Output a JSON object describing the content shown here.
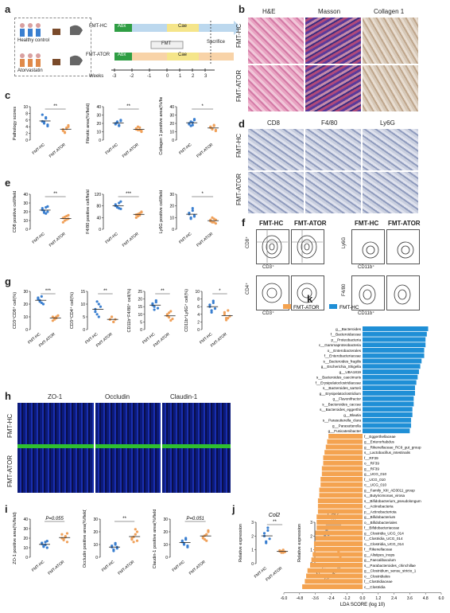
{
  "panel_labels": {
    "a": "a",
    "b": "b",
    "c": "c",
    "d": "d",
    "e": "e",
    "f": "f",
    "g": "g",
    "h": "h",
    "i": "i",
    "j": "j",
    "k": "k"
  },
  "panel_a": {
    "group_hc": "Healthy control",
    "group_ator": "Atorvastatin",
    "row_hc": "FMT-HC",
    "row_ator": "FMT-ATOR",
    "abx": "Abx",
    "cae": "Cae",
    "fmt": "FMT",
    "sacrifice": "Sacrifice",
    "weeks_label": "Weeks",
    "weeks": [
      "-3",
      "-2",
      "-1",
      "0",
      "1",
      "2",
      "3"
    ]
  },
  "panel_b": {
    "cols": [
      "H&E",
      "Masson",
      "Collagen 1"
    ],
    "rows": [
      "FMT-HC",
      "FMT-ATOR"
    ]
  },
  "panel_d": {
    "cols": [
      "CD8",
      "F4/80",
      "Ly6G"
    ],
    "rows": [
      "FMT-HC",
      "FMT-ATOR"
    ]
  },
  "panel_f": {
    "headers": [
      "FMT-HC",
      "FMT-ATOR",
      "FMT-HC",
      "FMT-ATOR"
    ],
    "axes": {
      "cd8": "CD8⁺",
      "cd3": "CD3⁺",
      "cd4": "CD4⁺",
      "ly6g": "Ly6G",
      "cd11b": "CD11b⁺",
      "f480": "F4/80"
    }
  },
  "panel_h": {
    "cols": [
      "ZO-1",
      "Occludin",
      "Claudin-1"
    ],
    "rows": [
      "FMT-HC",
      "FMT-ATOR"
    ]
  },
  "colors": {
    "hc": "#3a7fd0",
    "ator": "#f0a15a",
    "lda_ator": "#f4a350",
    "lda_hc": "#1f8fd6"
  },
  "chart_data": [
    {
      "id": "c1",
      "type": "scatter",
      "ylabel": "Pathology scores",
      "categories": [
        "FMT-HC",
        "FMT-ATOR"
      ],
      "ylim": [
        0,
        10
      ],
      "yticks": [
        0,
        2,
        4,
        6,
        8,
        10
      ],
      "sig": "**",
      "series": [
        {
          "values": [
            5.6,
            5.0,
            6.5,
            4.2,
            7.6,
            5.5,
            6.8,
            4.6
          ]
        },
        {
          "values": [
            3.2,
            2.4,
            3.7,
            4.0,
            2.8,
            2.2,
            3.4,
            4.4
          ]
        }
      ]
    },
    {
      "id": "c2",
      "type": "scatter",
      "ylabel": "Fibrotic area(%/field)",
      "categories": [
        "FMT-HC",
        "FMT-ATOR"
      ],
      "ylim": [
        0,
        40
      ],
      "yticks": [
        0,
        10,
        20,
        30,
        40
      ],
      "sig": "**",
      "series": [
        {
          "values": [
            20,
            22,
            18,
            24,
            19,
            21,
            17,
            23
          ]
        },
        {
          "values": [
            14,
            12,
            15,
            11,
            13,
            16,
            12,
            10
          ]
        }
      ]
    },
    {
      "id": "c3",
      "type": "scatter",
      "ylabel": "Collagen 1 positive area(%/field)",
      "categories": [
        "FMT-HC",
        "FMT-ATOR"
      ],
      "ylim": [
        0,
        40
      ],
      "yticks": [
        0,
        10,
        20,
        30,
        40
      ],
      "sig": "*",
      "series": [
        {
          "values": [
            19,
            22,
            18,
            24,
            20,
            17,
            21,
            25
          ]
        },
        {
          "values": [
            15,
            13,
            17,
            12,
            16,
            14,
            18,
            11
          ]
        }
      ]
    },
    {
      "id": "e1",
      "type": "scatter",
      "ylabel": "CD8 positive cell/field",
      "categories": [
        "FMT-HC",
        "FMT-ATOR"
      ],
      "ylim": [
        0,
        40
      ],
      "yticks": [
        0,
        10,
        20,
        30,
        40
      ],
      "sig": "**",
      "series": [
        {
          "values": [
            22,
            19,
            25,
            20,
            24,
            21,
            18,
            26
          ]
        },
        {
          "values": [
            13,
            10,
            15,
            12,
            8,
            14,
            11,
            16
          ]
        }
      ]
    },
    {
      "id": "e2",
      "type": "scatter",
      "ylabel": "F4/80 positive cell/field",
      "categories": [
        "FMT-HC",
        "FMT-ATOR"
      ],
      "ylim": [
        0,
        120
      ],
      "yticks": [
        0,
        40,
        80,
        120
      ],
      "sig": "***",
      "series": [
        {
          "values": [
            80,
            75,
            90,
            70,
            85,
            78,
            72,
            95
          ]
        },
        {
          "values": [
            50,
            45,
            55,
            60,
            40,
            52,
            48,
            58
          ]
        }
      ]
    },
    {
      "id": "e3",
      "type": "scatter",
      "ylabel": "Ly6G positive cell/field",
      "categories": [
        "FMT-HC",
        "FMT-ATOR"
      ],
      "ylim": [
        0,
        30
      ],
      "yticks": [
        0,
        10,
        20,
        30
      ],
      "sig": "*",
      "series": [
        {
          "values": [
            13,
            10,
            16,
            12,
            14,
            9,
            18,
            11
          ]
        },
        {
          "values": [
            8,
            6,
            9,
            5,
            7,
            10,
            6,
            8
          ]
        }
      ]
    },
    {
      "id": "g1",
      "type": "scatter",
      "ylabel": "CD3⁺CD8⁺ cell(%)",
      "categories": [
        "FMT-HC",
        "FMT-ATOR"
      ],
      "ylim": [
        0,
        30
      ],
      "yticks": [
        0,
        10,
        20,
        30
      ],
      "sig": "***",
      "series": [
        {
          "values": [
            24,
            22,
            26,
            20,
            25,
            23,
            21
          ]
        },
        {
          "values": [
            10,
            8,
            9,
            11,
            7,
            9,
            10
          ]
        }
      ]
    },
    {
      "id": "g2",
      "type": "scatter",
      "ylabel": "CD3⁺CD4⁺ cell(%)",
      "categories": [
        "FMT-HC",
        "FMT-ATOR"
      ],
      "ylim": [
        0,
        15
      ],
      "yticks": [
        0,
        5,
        10,
        15
      ],
      "sig": "**",
      "series": [
        {
          "values": [
            8,
            6,
            10,
            9,
            7,
            11,
            5
          ]
        },
        {
          "values": [
            4,
            5,
            3,
            4,
            4,
            5,
            3
          ]
        }
      ]
    },
    {
      "id": "g3",
      "type": "scatter",
      "ylabel": "CD11b⁺F4/80⁺ cell(%)",
      "categories": [
        "FMT-HC",
        "FMT-ATOR"
      ],
      "ylim": [
        0,
        25
      ],
      "yticks": [
        0,
        5,
        10,
        15,
        20,
        25
      ],
      "sig": "**",
      "series": [
        {
          "values": [
            16,
            15,
            18,
            14,
            17,
            13,
            19
          ]
        },
        {
          "values": [
            10,
            8,
            12,
            7,
            9,
            11,
            6
          ]
        }
      ]
    },
    {
      "id": "g4",
      "type": "scatter",
      "ylabel": "CD11b⁺Ly6G⁺ cell(%)",
      "categories": [
        "FMT-HC",
        "FMT-ATOR"
      ],
      "ylim": [
        0,
        10
      ],
      "yticks": [
        0,
        2,
        4,
        6,
        8,
        10
      ],
      "sig": "*",
      "series": [
        {
          "values": [
            6,
            5,
            7,
            5.5,
            6.5,
            4.5,
            7.5
          ]
        },
        {
          "values": [
            4,
            3,
            5,
            3.5,
            4.5,
            2.5,
            3
          ]
        }
      ]
    },
    {
      "id": "i1",
      "type": "scatter",
      "ylabel": "ZO-1 positive area(%/field)",
      "categories": [
        "FMT-HC",
        "FMT-ATOR"
      ],
      "ylim": [
        0,
        40
      ],
      "yticks": [
        0,
        10,
        20,
        30,
        40
      ],
      "sig": "P=0.055",
      "series": [
        {
          "values": [
            14,
            12,
            16,
            10,
            15,
            11,
            13,
            17
          ]
        },
        {
          "values": [
            20,
            18,
            22,
            16,
            24,
            19,
            21,
            25
          ]
        }
      ]
    },
    {
      "id": "i2",
      "type": "scatter",
      "ylabel": "Occludin positive area(%/field)",
      "categories": [
        "FMT-HC",
        "FMT-ATOR"
      ],
      "ylim": [
        0,
        30
      ],
      "yticks": [
        0,
        10,
        20,
        30
      ],
      "sig": "**",
      "series": [
        {
          "values": [
            8,
            6,
            10,
            7,
            9,
            5,
            11,
            8
          ]
        },
        {
          "values": [
            15,
            12,
            18,
            20,
            14,
            16,
            22,
            13
          ]
        }
      ]
    },
    {
      "id": "i3",
      "type": "scatter",
      "ylabel": "Claudin-1 positive area(%/field)",
      "categories": [
        "FMT-HC",
        "FMT-ATOR"
      ],
      "ylim": [
        0,
        30
      ],
      "yticks": [
        0,
        10,
        20,
        30
      ],
      "sig": "P=0.051",
      "series": [
        {
          "values": [
            12,
            10,
            14,
            9,
            13,
            11,
            15,
            8
          ]
        },
        {
          "values": [
            16,
            14,
            18,
            20,
            15,
            17,
            13,
            21
          ]
        }
      ]
    },
    {
      "id": "j1",
      "type": "scatter",
      "title": "Col2",
      "ylabel": "Relative expression",
      "categories": [
        "FMT-HC",
        "FMT-ATOR"
      ],
      "ylim": [
        0,
        3
      ],
      "yticks": [
        0,
        1,
        2,
        3
      ],
      "sig": "**",
      "series": [
        {
          "values": [
            2.0,
            1.6,
            2.4,
            1.8,
            2.2,
            1.5,
            2.6
          ]
        },
        {
          "values": [
            0.9,
            0.8,
            1.0,
            0.85,
            0.95,
            0.9,
            0.8
          ]
        }
      ]
    },
    {
      "id": "j2",
      "type": "scatter",
      "title": "Col7",
      "ylabel": "Relative expression",
      "categories": [
        "FMT-HC",
        "FMT-ATOR"
      ],
      "ylim": [
        0,
        3
      ],
      "yticks": [
        0,
        1,
        2,
        3
      ],
      "sig": "***",
      "series": [
        {
          "values": [
            2.2,
            2.0,
            2.4,
            2.1,
            2.3,
            1.9,
            2.5
          ]
        },
        {
          "values": [
            0.8,
            0.6,
            1.0,
            0.7,
            0.9,
            0.5,
            1.1
          ]
        }
      ]
    },
    {
      "id": "k",
      "type": "bar",
      "xlabel": "LDA SCORE (log 10)",
      "xlim": [
        -6,
        6
      ],
      "xticks": [
        "-6.0",
        "-4.8",
        "-3.6",
        "-2.4",
        "-1.2",
        "0.0",
        "1.2",
        "2.4",
        "3.6",
        "4.8",
        "6.0"
      ],
      "legend": [
        "FMT-ATOR",
        "FMT-HC"
      ],
      "categories": [
        "g__Bacteroides",
        "f__Bacteroidaceae",
        "p__Proteobacteria",
        "c__Gammaproteobacteria",
        "o__Enterobacterales",
        "f__Enterobacteriaceae",
        "s__Bacteroides_fragilis",
        "g__Escherichia_Shigella",
        "g__UBA1819",
        "s__Bacteroides_caecimuris",
        "f__Erysipelatoclostridiaceae",
        "s__Bacteroides_sartorii",
        "g__Erysipelatoclostridium",
        "g__Flavonifractor",
        "s__Bacteroides_caccae",
        "s__Bacteroides_eggerthii",
        "g__Blautia",
        "s__Parasutterella_clara",
        "g__Parasutterella",
        "g__Fusicatenibacter",
        "f__Eggerthellaceae",
        "g__Enterorhabdus",
        "g__Rikenellaceae_RC9_gut_group",
        "s__Lactobacillus_intestinalis",
        "f__RF39",
        "o__RF39",
        "g__RF39",
        "g__UCG_010",
        "f__UCG_010",
        "o__UCG_010",
        "g__Family_XIII_AD3011_group",
        "s__Butyricimonas_virosa",
        "s__Bifidobacterium_pseudolongum",
        "c__Actinobacteria",
        "p__Actinobacteriota",
        "g__Bifidobacterium",
        "o__Bifidobacteriales",
        "f__Bifidobacteriaceae",
        "g__Clostridia_UCG_014",
        "f__Clostridia_UCG_014",
        "o__Clostridia_UCG_014",
        "f__Rikenellaceae",
        "g__Alistipes_inops",
        "g__Faecalibaculum",
        "s__Parabacteroides_chinchillae",
        "g__Clostridium_sensu_stricto_1",
        "o__Clostridiales",
        "f__Clostridiaceae",
        "c__Clostridia"
      ],
      "values": [
        5.0,
        4.9,
        4.8,
        4.8,
        4.7,
        4.7,
        4.5,
        4.4,
        4.3,
        4.2,
        4.1,
        4.0,
        4.0,
        3.9,
        3.9,
        3.8,
        3.8,
        3.7,
        3.7,
        3.6,
        -2.6,
        -2.7,
        -2.8,
        -2.9,
        -3.0,
        -3.0,
        -3.1,
        -3.1,
        -3.2,
        -3.2,
        -3.3,
        -3.3,
        -3.4,
        -3.4,
        -3.4,
        -3.5,
        -3.5,
        -3.5,
        -3.6,
        -3.6,
        -3.7,
        -3.7,
        -3.8,
        -3.9,
        -4.0,
        -4.2,
        -4.3,
        -4.4,
        -4.6
      ]
    }
  ]
}
